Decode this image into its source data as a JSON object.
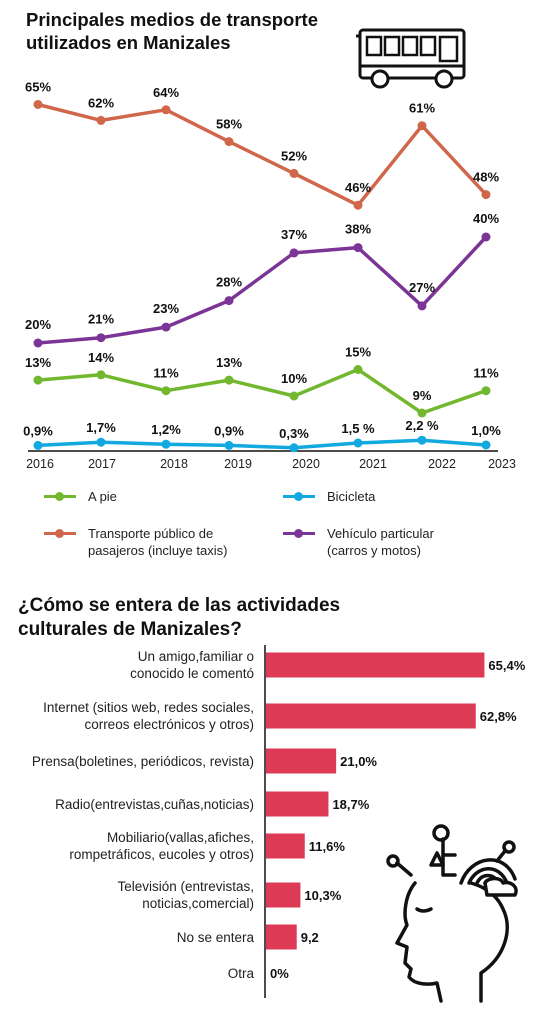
{
  "line_chart_title": "Principales medios de transporte utilizados en Manizales",
  "bar_chart_title": "¿Cómo se entera de las actividades culturales de Manizales?",
  "icons": {
    "bus": "bus-icon",
    "head": "head-thinking-icon"
  },
  "chart_data": [
    {
      "type": "line",
      "title": "Principales medios de transporte utilizados en Manizales",
      "x": [
        "2016",
        "2017",
        "2018",
        "2019",
        "2020",
        "2021",
        "2022",
        "2023"
      ],
      "series": [
        {
          "name": "Transporte público de\npasajeros (incluye taxis)",
          "color": "#d0674b",
          "values": [
            65,
            62,
            64,
            58,
            52,
            46,
            61,
            48
          ],
          "labels": [
            "65%",
            "62%",
            "64%",
            "58%",
            "52%",
            "46%",
            "61%",
            "48%"
          ]
        },
        {
          "name": "Vehículo particular\n(carros y motos)",
          "color": "#7b3596",
          "values": [
            20,
            21,
            23,
            28,
            37,
            38,
            27,
            40
          ],
          "labels": [
            "20%",
            "21%",
            "23%",
            "28%",
            "37%",
            "38%",
            "27%",
            "40%"
          ]
        },
        {
          "name": "A pie",
          "color": "#72b82e",
          "values": [
            13,
            14,
            11,
            13,
            10,
            15,
            9,
            11
          ],
          "labels": [
            "13%",
            "14%",
            "11%",
            "13%",
            "10%",
            "15%",
            "9%",
            "11%"
          ]
        },
        {
          "name": "Bicicleta",
          "color": "#12a9e0",
          "values": [
            0.9,
            1.7,
            1.2,
            0.9,
            0.3,
            1.5,
            2.2,
            1.0
          ],
          "labels": [
            "0,9%",
            "1,7%",
            "1,2%",
            "0,9%",
            "0,3%",
            "1,5 %",
            "2,2 %",
            "1,0%"
          ]
        }
      ],
      "legend_order": [
        "A pie",
        "Bicicleta",
        "Transporte público de\npasajeros (incluye taxis)",
        "Vehículo particular\n(carros y motos)"
      ]
    },
    {
      "type": "bar",
      "orientation": "horizontal",
      "title": "¿Cómo se entera de las actividades culturales de Manizales?",
      "color": "#dc3a55",
      "categories": [
        "Un amigo,familiar o\nconocido le comentó",
        "Internet (sitios web, redes sociales,\ncorreos electrónicos y otros)",
        "Prensa(boletines, periódicos, revista)",
        "Radio(entrevistas,cuñas,noticias)",
        "Mobiliario(vallas,afiches,\nrompetráficos, eucoles y otros)",
        "Televisión (entrevistas,\nnoticias,comercial)",
        "No se entera",
        "Otra"
      ],
      "values": [
        65.4,
        62.8,
        21.0,
        18.7,
        11.6,
        10.3,
        9.2,
        0
      ],
      "labels": [
        "65,4%",
        "62,8%",
        "21,0%",
        "18,7%",
        "11,6%",
        "10,3%",
        "9,2",
        "0%"
      ]
    }
  ]
}
